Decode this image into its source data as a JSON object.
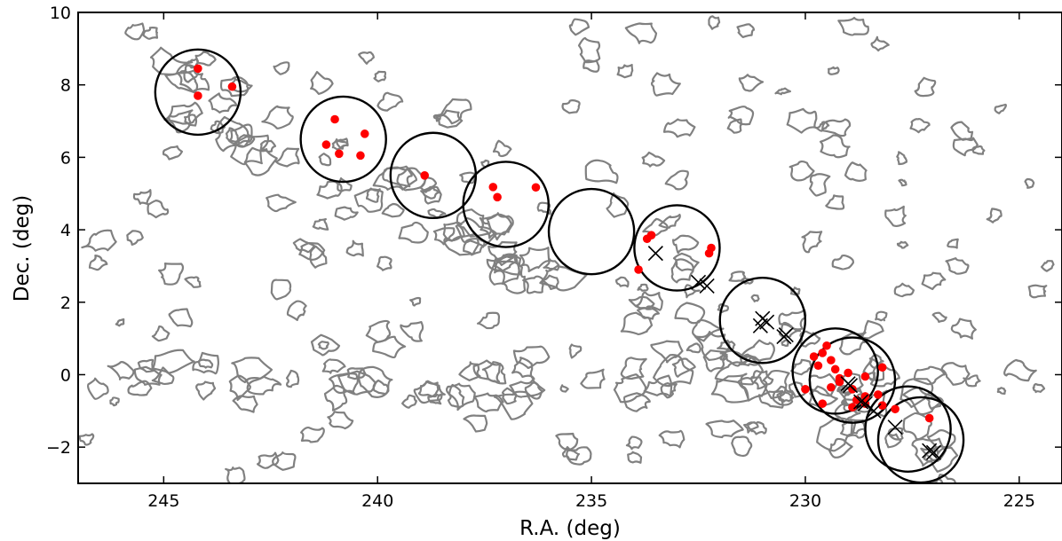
{
  "chart_data": {
    "type": "scatter",
    "xlabel": "R.A. (deg)",
    "ylabel": "Dec. (deg)",
    "xlim": [
      247,
      224
    ],
    "ylim": [
      -3,
      10
    ],
    "x_reversed": true,
    "grid": false,
    "x_ticks": [
      245,
      240,
      235,
      230,
      225
    ],
    "x_tick_labels": [
      "245",
      "240",
      "235",
      "230",
      "225"
    ],
    "y_ticks": [
      -2,
      0,
      2,
      4,
      6,
      8,
      10
    ],
    "y_tick_labels": [
      "−2",
      "0",
      "2",
      "4",
      "6",
      "8",
      "10"
    ],
    "colors": {
      "red_points": "#ff0000",
      "crosses": "#000000",
      "circles": "#000000",
      "contours": "#808080"
    },
    "circles": [
      {
        "ra": 244.2,
        "dec": 7.8,
        "r": 1.05
      },
      {
        "ra": 240.8,
        "dec": 6.5,
        "r": 1.05
      },
      {
        "ra": 238.7,
        "dec": 5.5,
        "r": 1.05
      },
      {
        "ra": 237.0,
        "dec": 4.7,
        "r": 1.05
      },
      {
        "ra": 235.0,
        "dec": 3.95,
        "r": 1.05
      },
      {
        "ra": 233.0,
        "dec": 3.5,
        "r": 1.05
      },
      {
        "ra": 231.0,
        "dec": 1.5,
        "r": 1.05
      },
      {
        "ra": 229.3,
        "dec": 0.1,
        "r": 1.05
      },
      {
        "ra": 228.9,
        "dec": -0.15,
        "r": 1.05
      },
      {
        "ra": 227.6,
        "dec": -1.5,
        "r": 1.05
      },
      {
        "ra": 227.3,
        "dec": -1.8,
        "r": 1.05
      }
    ],
    "series": [
      {
        "marker": "dot",
        "points": [
          [
            244.2,
            8.45
          ],
          [
            243.4,
            7.95
          ],
          [
            244.2,
            7.7
          ],
          [
            241.0,
            7.05
          ],
          [
            240.3,
            6.65
          ],
          [
            241.2,
            6.35
          ],
          [
            240.9,
            6.1
          ],
          [
            240.4,
            6.05
          ],
          [
            238.9,
            5.5
          ],
          [
            237.3,
            5.18
          ],
          [
            236.3,
            5.17
          ],
          [
            237.2,
            4.9
          ],
          [
            233.6,
            3.85
          ],
          [
            233.7,
            3.75
          ],
          [
            232.2,
            3.5
          ],
          [
            232.25,
            3.35
          ],
          [
            233.9,
            2.9
          ],
          [
            229.5,
            0.8
          ],
          [
            229.6,
            0.6
          ],
          [
            229.8,
            0.5
          ],
          [
            229.4,
            0.4
          ],
          [
            229.3,
            0.15
          ],
          [
            229.0,
            0.05
          ],
          [
            228.6,
            -0.05
          ],
          [
            229.2,
            -0.2
          ],
          [
            229.4,
            -0.35
          ],
          [
            228.9,
            -0.4
          ],
          [
            228.3,
            -0.55
          ],
          [
            228.8,
            -0.7
          ],
          [
            228.6,
            -0.8
          ],
          [
            228.2,
            -0.85
          ],
          [
            227.9,
            -0.95
          ],
          [
            228.9,
            -0.9
          ],
          [
            229.6,
            -0.8
          ],
          [
            230.0,
            -0.4
          ],
          [
            228.2,
            0.2
          ],
          [
            229.2,
            -0.1
          ],
          [
            227.1,
            -1.2
          ],
          [
            229.7,
            0.25
          ],
          [
            228.6,
            -0.6
          ]
        ]
      },
      {
        "marker": "x",
        "points": [
          [
            233.5,
            3.35
          ],
          [
            232.5,
            2.55
          ],
          [
            232.3,
            2.45
          ],
          [
            231.0,
            1.55
          ],
          [
            230.9,
            1.45
          ],
          [
            231.05,
            1.35
          ],
          [
            230.5,
            1.05
          ],
          [
            230.45,
            1.1
          ],
          [
            229.0,
            -0.25
          ],
          [
            228.95,
            -0.3
          ],
          [
            228.7,
            -0.75
          ],
          [
            228.6,
            -0.8
          ],
          [
            228.4,
            -1.0
          ],
          [
            227.9,
            -1.45
          ],
          [
            227.1,
            -2.1
          ],
          [
            227.0,
            -2.15
          ]
        ]
      }
    ]
  }
}
